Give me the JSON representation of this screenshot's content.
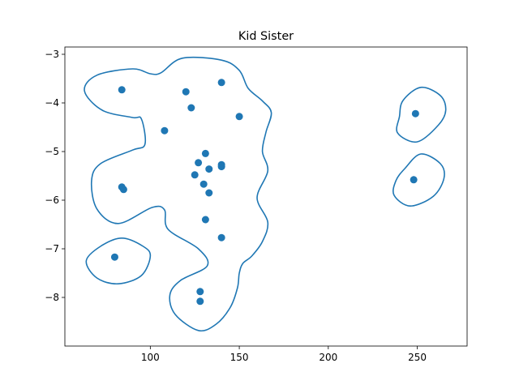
{
  "chart_data": {
    "type": "scatter",
    "title": "Kid Sister",
    "xlabel": "",
    "ylabel": "",
    "xlim": [
      52,
      278
    ],
    "ylim": [
      -9.0,
      -2.85
    ],
    "xticks": [
      100,
      150,
      200,
      250
    ],
    "yticks": [
      -8,
      -7,
      -6,
      -5,
      -4,
      -3
    ],
    "xtick_labels": [
      "100",
      "150",
      "200",
      "250"
    ],
    "ytick_labels": [
      "−8",
      "−7",
      "−6",
      "−5",
      "−4",
      "−3"
    ],
    "grid": false,
    "color": "#1f77b4",
    "points": [
      {
        "x": 84,
        "y": -3.73
      },
      {
        "x": 120,
        "y": -3.77
      },
      {
        "x": 140,
        "y": -3.58
      },
      {
        "x": 123,
        "y": -4.1
      },
      {
        "x": 150,
        "y": -4.28
      },
      {
        "x": 108,
        "y": -4.57
      },
      {
        "x": 131,
        "y": -5.04
      },
      {
        "x": 127,
        "y": -5.23
      },
      {
        "x": 140,
        "y": -5.27
      },
      {
        "x": 140,
        "y": -5.31
      },
      {
        "x": 133,
        "y": -5.36
      },
      {
        "x": 125,
        "y": -5.48
      },
      {
        "x": 130,
        "y": -5.67
      },
      {
        "x": 84,
        "y": -5.73
      },
      {
        "x": 85,
        "y": -5.78
      },
      {
        "x": 133,
        "y": -5.85
      },
      {
        "x": 131,
        "y": -6.4
      },
      {
        "x": 140,
        "y": -6.77
      },
      {
        "x": 80,
        "y": -7.17
      },
      {
        "x": 128,
        "y": -7.88
      },
      {
        "x": 128,
        "y": -8.08
      },
      {
        "x": 249,
        "y": -4.22
      },
      {
        "x": 248,
        "y": -5.58
      }
    ],
    "contours": [
      [
        [
          106,
          -3.38
        ],
        [
          118,
          -3.08
        ],
        [
          140,
          -3.12
        ],
        [
          150,
          -3.33
        ],
        [
          155,
          -3.7
        ],
        [
          163,
          -3.96
        ],
        [
          168,
          -4.2
        ],
        [
          165,
          -4.6
        ],
        [
          163,
          -5.0
        ],
        [
          166,
          -5.4
        ],
        [
          160,
          -5.95
        ],
        [
          166,
          -6.45
        ],
        [
          163,
          -6.85
        ],
        [
          157,
          -7.15
        ],
        [
          152,
          -7.3
        ],
        [
          150,
          -7.5
        ],
        [
          149,
          -7.8
        ],
        [
          145,
          -8.2
        ],
        [
          137,
          -8.55
        ],
        [
          127,
          -8.68
        ],
        [
          114,
          -8.35
        ],
        [
          111,
          -7.95
        ],
        [
          117,
          -7.65
        ],
        [
          132,
          -7.35
        ],
        [
          127,
          -7.0
        ],
        [
          110,
          -6.6
        ],
        [
          108,
          -6.2
        ],
        [
          101,
          -6.15
        ],
        [
          82,
          -6.48
        ],
        [
          70,
          -6.18
        ],
        [
          67,
          -5.6
        ],
        [
          72,
          -5.25
        ],
        [
          90,
          -4.97
        ],
        [
          97,
          -4.85
        ],
        [
          95,
          -4.33
        ],
        [
          90,
          -4.3
        ],
        [
          73,
          -4.15
        ],
        [
          63,
          -3.75
        ],
        [
          70,
          -3.43
        ],
        [
          90,
          -3.3
        ],
        [
          100,
          -3.4
        ]
      ],
      [
        [
          64,
          -7.25
        ],
        [
          72,
          -6.95
        ],
        [
          84,
          -6.78
        ],
        [
          96,
          -6.95
        ],
        [
          100,
          -7.15
        ],
        [
          95,
          -7.55
        ],
        [
          82,
          -7.72
        ],
        [
          70,
          -7.6
        ]
      ],
      [
        [
          242,
          -3.95
        ],
        [
          252,
          -3.68
        ],
        [
          263,
          -3.85
        ],
        [
          266,
          -4.15
        ],
        [
          262,
          -4.45
        ],
        [
          250,
          -4.8
        ],
        [
          239,
          -4.62
        ],
        [
          240,
          -4.28
        ]
      ],
      [
        [
          243,
          -5.35
        ],
        [
          252,
          -5.05
        ],
        [
          263,
          -5.25
        ],
        [
          265,
          -5.55
        ],
        [
          259,
          -5.92
        ],
        [
          246,
          -6.12
        ],
        [
          237,
          -5.9
        ],
        [
          238,
          -5.6
        ]
      ]
    ]
  }
}
